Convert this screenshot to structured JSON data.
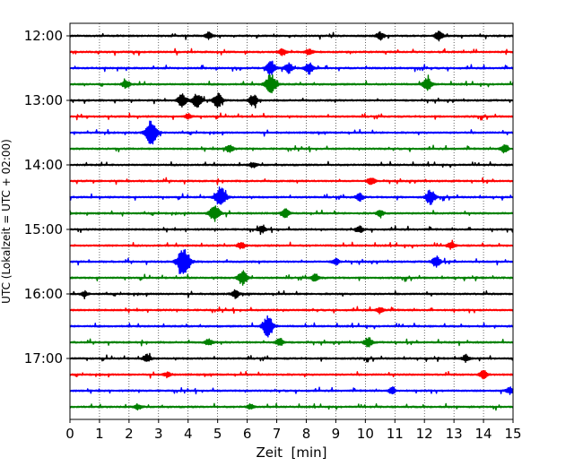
{
  "chart_data": {
    "type": "line",
    "title": "",
    "xlabel": "Zeit  [min]",
    "ylabel": "UTC (Lokalzeit = UTC + 02:00)",
    "xlim": [
      0,
      15
    ],
    "x_ticks": [
      "0",
      "1",
      "2",
      "3",
      "4",
      "5",
      "6",
      "7",
      "8",
      "9",
      "10",
      "11",
      "12",
      "13",
      "14",
      "15"
    ],
    "y_tick_labels": [
      "12:00",
      "13:00",
      "14:00",
      "15:00",
      "16:00",
      "17:00"
    ],
    "grid": "vertical dotted",
    "colors": [
      "#000000",
      "#ff0000",
      "#0000ff",
      "#008000"
    ],
    "traces": [
      {
        "start": "12:00",
        "events": [
          [
            4.7,
            0.4
          ],
          [
            10.5,
            0.5
          ],
          [
            12.5,
            0.6
          ]
        ]
      },
      {
        "start": "12:15",
        "events": [
          [
            7.2,
            0.4
          ],
          [
            8.1,
            0.4
          ]
        ]
      },
      {
        "start": "12:30",
        "events": [
          [
            6.8,
            0.9
          ],
          [
            8.1,
            0.7
          ],
          [
            7.4,
            0.6
          ]
        ]
      },
      {
        "start": "12:45",
        "events": [
          [
            6.8,
            1.3
          ],
          [
            12.1,
            0.8
          ],
          [
            1.9,
            0.5
          ]
        ]
      },
      {
        "start": "13:00",
        "events": [
          [
            4.3,
            0.9
          ],
          [
            5.0,
            0.9
          ],
          [
            3.8,
            0.8
          ],
          [
            6.2,
            0.7
          ]
        ]
      },
      {
        "start": "13:15",
        "events": [
          [
            4.0,
            0.3
          ]
        ]
      },
      {
        "start": "13:30",
        "events": [
          [
            2.75,
            1.5
          ]
        ]
      },
      {
        "start": "13:45",
        "events": [
          [
            5.4,
            0.5
          ],
          [
            14.7,
            0.5
          ]
        ]
      },
      {
        "start": "14:00",
        "events": [
          [
            6.2,
            0.3
          ]
        ]
      },
      {
        "start": "14:15",
        "events": [
          [
            10.2,
            0.5
          ]
        ]
      },
      {
        "start": "14:30",
        "events": [
          [
            5.1,
            1.3
          ],
          [
            12.2,
            0.9
          ],
          [
            9.8,
            0.5
          ]
        ]
      },
      {
        "start": "14:45",
        "events": [
          [
            4.9,
            1.1
          ],
          [
            7.3,
            0.5
          ],
          [
            10.5,
            0.4
          ]
        ]
      },
      {
        "start": "15:00",
        "events": [
          [
            6.5,
            0.4
          ],
          [
            9.8,
            0.4
          ]
        ]
      },
      {
        "start": "15:15",
        "events": [
          [
            5.8,
            0.4
          ],
          [
            12.9,
            0.4
          ]
        ]
      },
      {
        "start": "15:30",
        "events": [
          [
            3.85,
            1.8
          ],
          [
            12.4,
            0.7
          ],
          [
            9.0,
            0.4
          ]
        ]
      },
      {
        "start": "15:45",
        "events": [
          [
            5.85,
            0.9
          ],
          [
            8.3,
            0.5
          ]
        ]
      },
      {
        "start": "16:00",
        "events": [
          [
            5.6,
            0.5
          ],
          [
            0.5,
            0.3
          ]
        ]
      },
      {
        "start": "16:15",
        "events": [
          [
            10.5,
            0.4
          ]
        ]
      },
      {
        "start": "16:30",
        "events": [
          [
            6.7,
            1.3
          ]
        ]
      },
      {
        "start": "16:45",
        "events": [
          [
            7.1,
            0.5
          ],
          [
            10.1,
            0.6
          ],
          [
            4.7,
            0.4
          ]
        ]
      },
      {
        "start": "17:00",
        "events": [
          [
            2.6,
            0.5
          ],
          [
            13.4,
            0.4
          ]
        ]
      },
      {
        "start": "17:15",
        "events": [
          [
            14.0,
            0.5
          ],
          [
            3.3,
            0.3
          ]
        ]
      },
      {
        "start": "17:30",
        "events": [
          [
            10.9,
            0.4
          ],
          [
            14.9,
            0.4
          ]
        ]
      },
      {
        "start": "17:45",
        "events": [
          [
            2.3,
            0.3
          ],
          [
            6.1,
            0.3
          ]
        ]
      }
    ]
  }
}
